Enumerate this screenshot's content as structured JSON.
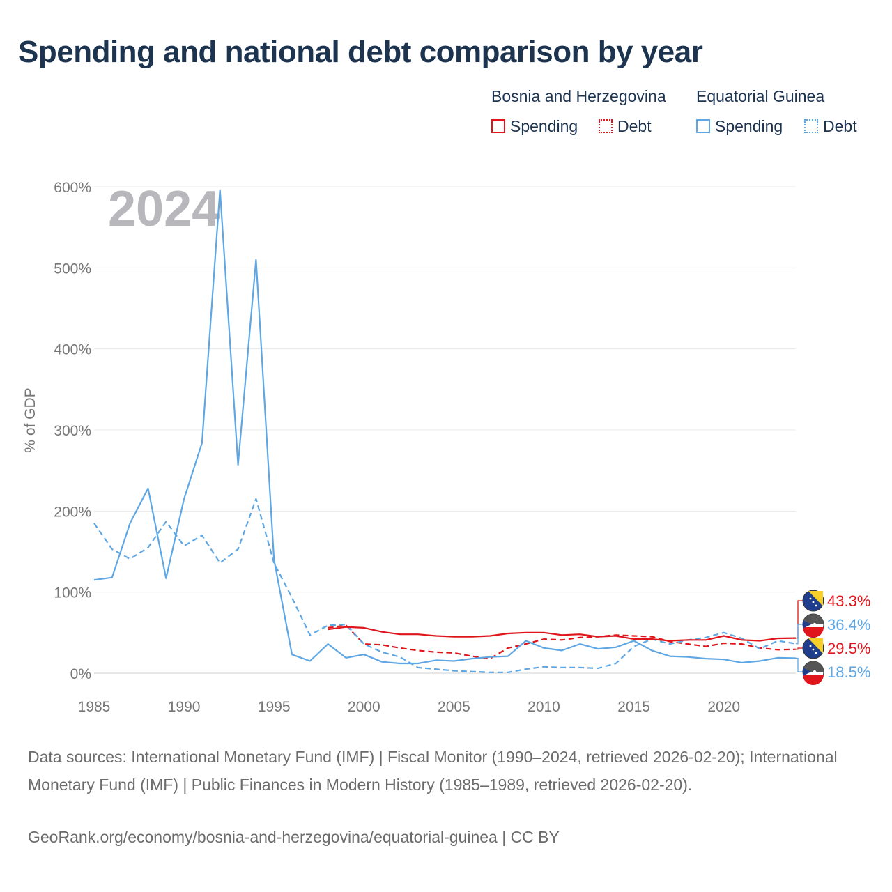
{
  "title": "Spending and national debt comparison by year",
  "legend": {
    "countries": [
      {
        "name": "Bosnia and Herzegovina",
        "color": "#e0141b"
      },
      {
        "name": "Equatorial Guinea",
        "color": "#5ea7e4"
      }
    ],
    "spending_label": "Spending",
    "debt_label": "Debt"
  },
  "chart_data": {
    "type": "line",
    "title": "Spending and national debt comparison by year",
    "xlabel": "",
    "ylabel": "% of GDP",
    "year_watermark": "2024",
    "xlim": [
      1985,
      2024
    ],
    "ylim": [
      0,
      600
    ],
    "x_ticks": [
      1985,
      1990,
      1995,
      2000,
      2005,
      2010,
      2015,
      2020
    ],
    "y_ticks": [
      0,
      100,
      200,
      300,
      400,
      500,
      600
    ],
    "y_tick_labels": [
      "0%",
      "100%",
      "200%",
      "300%",
      "400%",
      "500%",
      "600%"
    ],
    "series": [
      {
        "name": "Bosnia and Herzegovina Spending",
        "country": "Bosnia and Herzegovina",
        "measure": "Spending",
        "color": "#e0141b",
        "style": "solid",
        "x": [
          1998,
          1999,
          2000,
          2001,
          2002,
          2003,
          2004,
          2005,
          2006,
          2007,
          2008,
          2009,
          2010,
          2011,
          2012,
          2013,
          2014,
          2015,
          2016,
          2017,
          2018,
          2019,
          2020,
          2021,
          2022,
          2023,
          2024
        ],
        "y": [
          54,
          57,
          56,
          51,
          48,
          48,
          46,
          45,
          45,
          46,
          49,
          50,
          50,
          47,
          48,
          45,
          46,
          42,
          42,
          40,
          41,
          41,
          46,
          41,
          40,
          43,
          43.3
        ],
        "end_label": "43.3%"
      },
      {
        "name": "Bosnia and Herzegovina Debt",
        "country": "Bosnia and Herzegovina",
        "measure": "Debt",
        "color": "#e0141b",
        "style": "dashed",
        "x": [
          1998,
          1999,
          2000,
          2001,
          2002,
          2003,
          2004,
          2005,
          2006,
          2007,
          2008,
          2009,
          2010,
          2011,
          2012,
          2013,
          2014,
          2015,
          2016,
          2017,
          2018,
          2019,
          2020,
          2021,
          2022,
          2023,
          2024
        ],
        "y": [
          56,
          59,
          36,
          35,
          31,
          28,
          26,
          25,
          21,
          18,
          31,
          36,
          42,
          41,
          44,
          45,
          47,
          46,
          45,
          39,
          36,
          33,
          37,
          36,
          31,
          29,
          29.5
        ],
        "end_label": "29.5%"
      },
      {
        "name": "Equatorial Guinea Spending",
        "country": "Equatorial Guinea",
        "measure": "Spending",
        "color": "#5ea7e4",
        "style": "solid",
        "x": [
          1985,
          1986,
          1987,
          1988,
          1989,
          1990,
          1991,
          1992,
          1993,
          1994,
          1995,
          1996,
          1997,
          1998,
          1999,
          2000,
          2001,
          2002,
          2003,
          2004,
          2005,
          2006,
          2007,
          2008,
          2009,
          2010,
          2011,
          2012,
          2013,
          2014,
          2015,
          2016,
          2017,
          2018,
          2019,
          2020,
          2021,
          2022,
          2023,
          2024
        ],
        "y": [
          115,
          118,
          185,
          228,
          117,
          215,
          284,
          596,
          257,
          510,
          140,
          23,
          15,
          36,
          19,
          23,
          14,
          12,
          12,
          16,
          15,
          18,
          20,
          21,
          40,
          31,
          28,
          36,
          30,
          32,
          40,
          28,
          21,
          20,
          18,
          17,
          13,
          15,
          19,
          18.5
        ],
        "end_label": "18.5%"
      },
      {
        "name": "Equatorial Guinea Debt",
        "country": "Equatorial Guinea",
        "measure": "Debt",
        "color": "#5ea7e4",
        "style": "dashed",
        "x": [
          1985,
          1986,
          1987,
          1988,
          1989,
          1990,
          1991,
          1992,
          1993,
          1994,
          1995,
          1996,
          1997,
          1998,
          1999,
          2000,
          2001,
          2002,
          2003,
          2004,
          2005,
          2006,
          2007,
          2008,
          2009,
          2010,
          2011,
          2012,
          2013,
          2014,
          2015,
          2016,
          2017,
          2018,
          2019,
          2020,
          2021,
          2022,
          2023,
          2024
        ],
        "y": [
          185,
          153,
          141,
          155,
          187,
          157,
          170,
          136,
          153,
          215,
          136,
          93,
          47,
          59,
          60,
          36,
          26,
          20,
          7,
          5,
          3,
          2,
          1,
          1,
          5,
          8,
          7,
          7,
          6,
          12,
          33,
          42,
          36,
          41,
          44,
          50,
          43,
          30,
          40,
          36.4
        ],
        "end_label": "36.4%"
      }
    ]
  },
  "sources": {
    "line1": "Data sources: International Monetary Fund (IMF) | Fiscal Monitor (1990–2024, retrieved 2026-02-20); International Monetary Fund (IMF) | Public Finances in Modern History (1985–1989, retrieved 2026-02-20).",
    "line2": "GeoRank.org/economy/bosnia-and-herzegovina/equatorial-guinea | CC BY"
  }
}
